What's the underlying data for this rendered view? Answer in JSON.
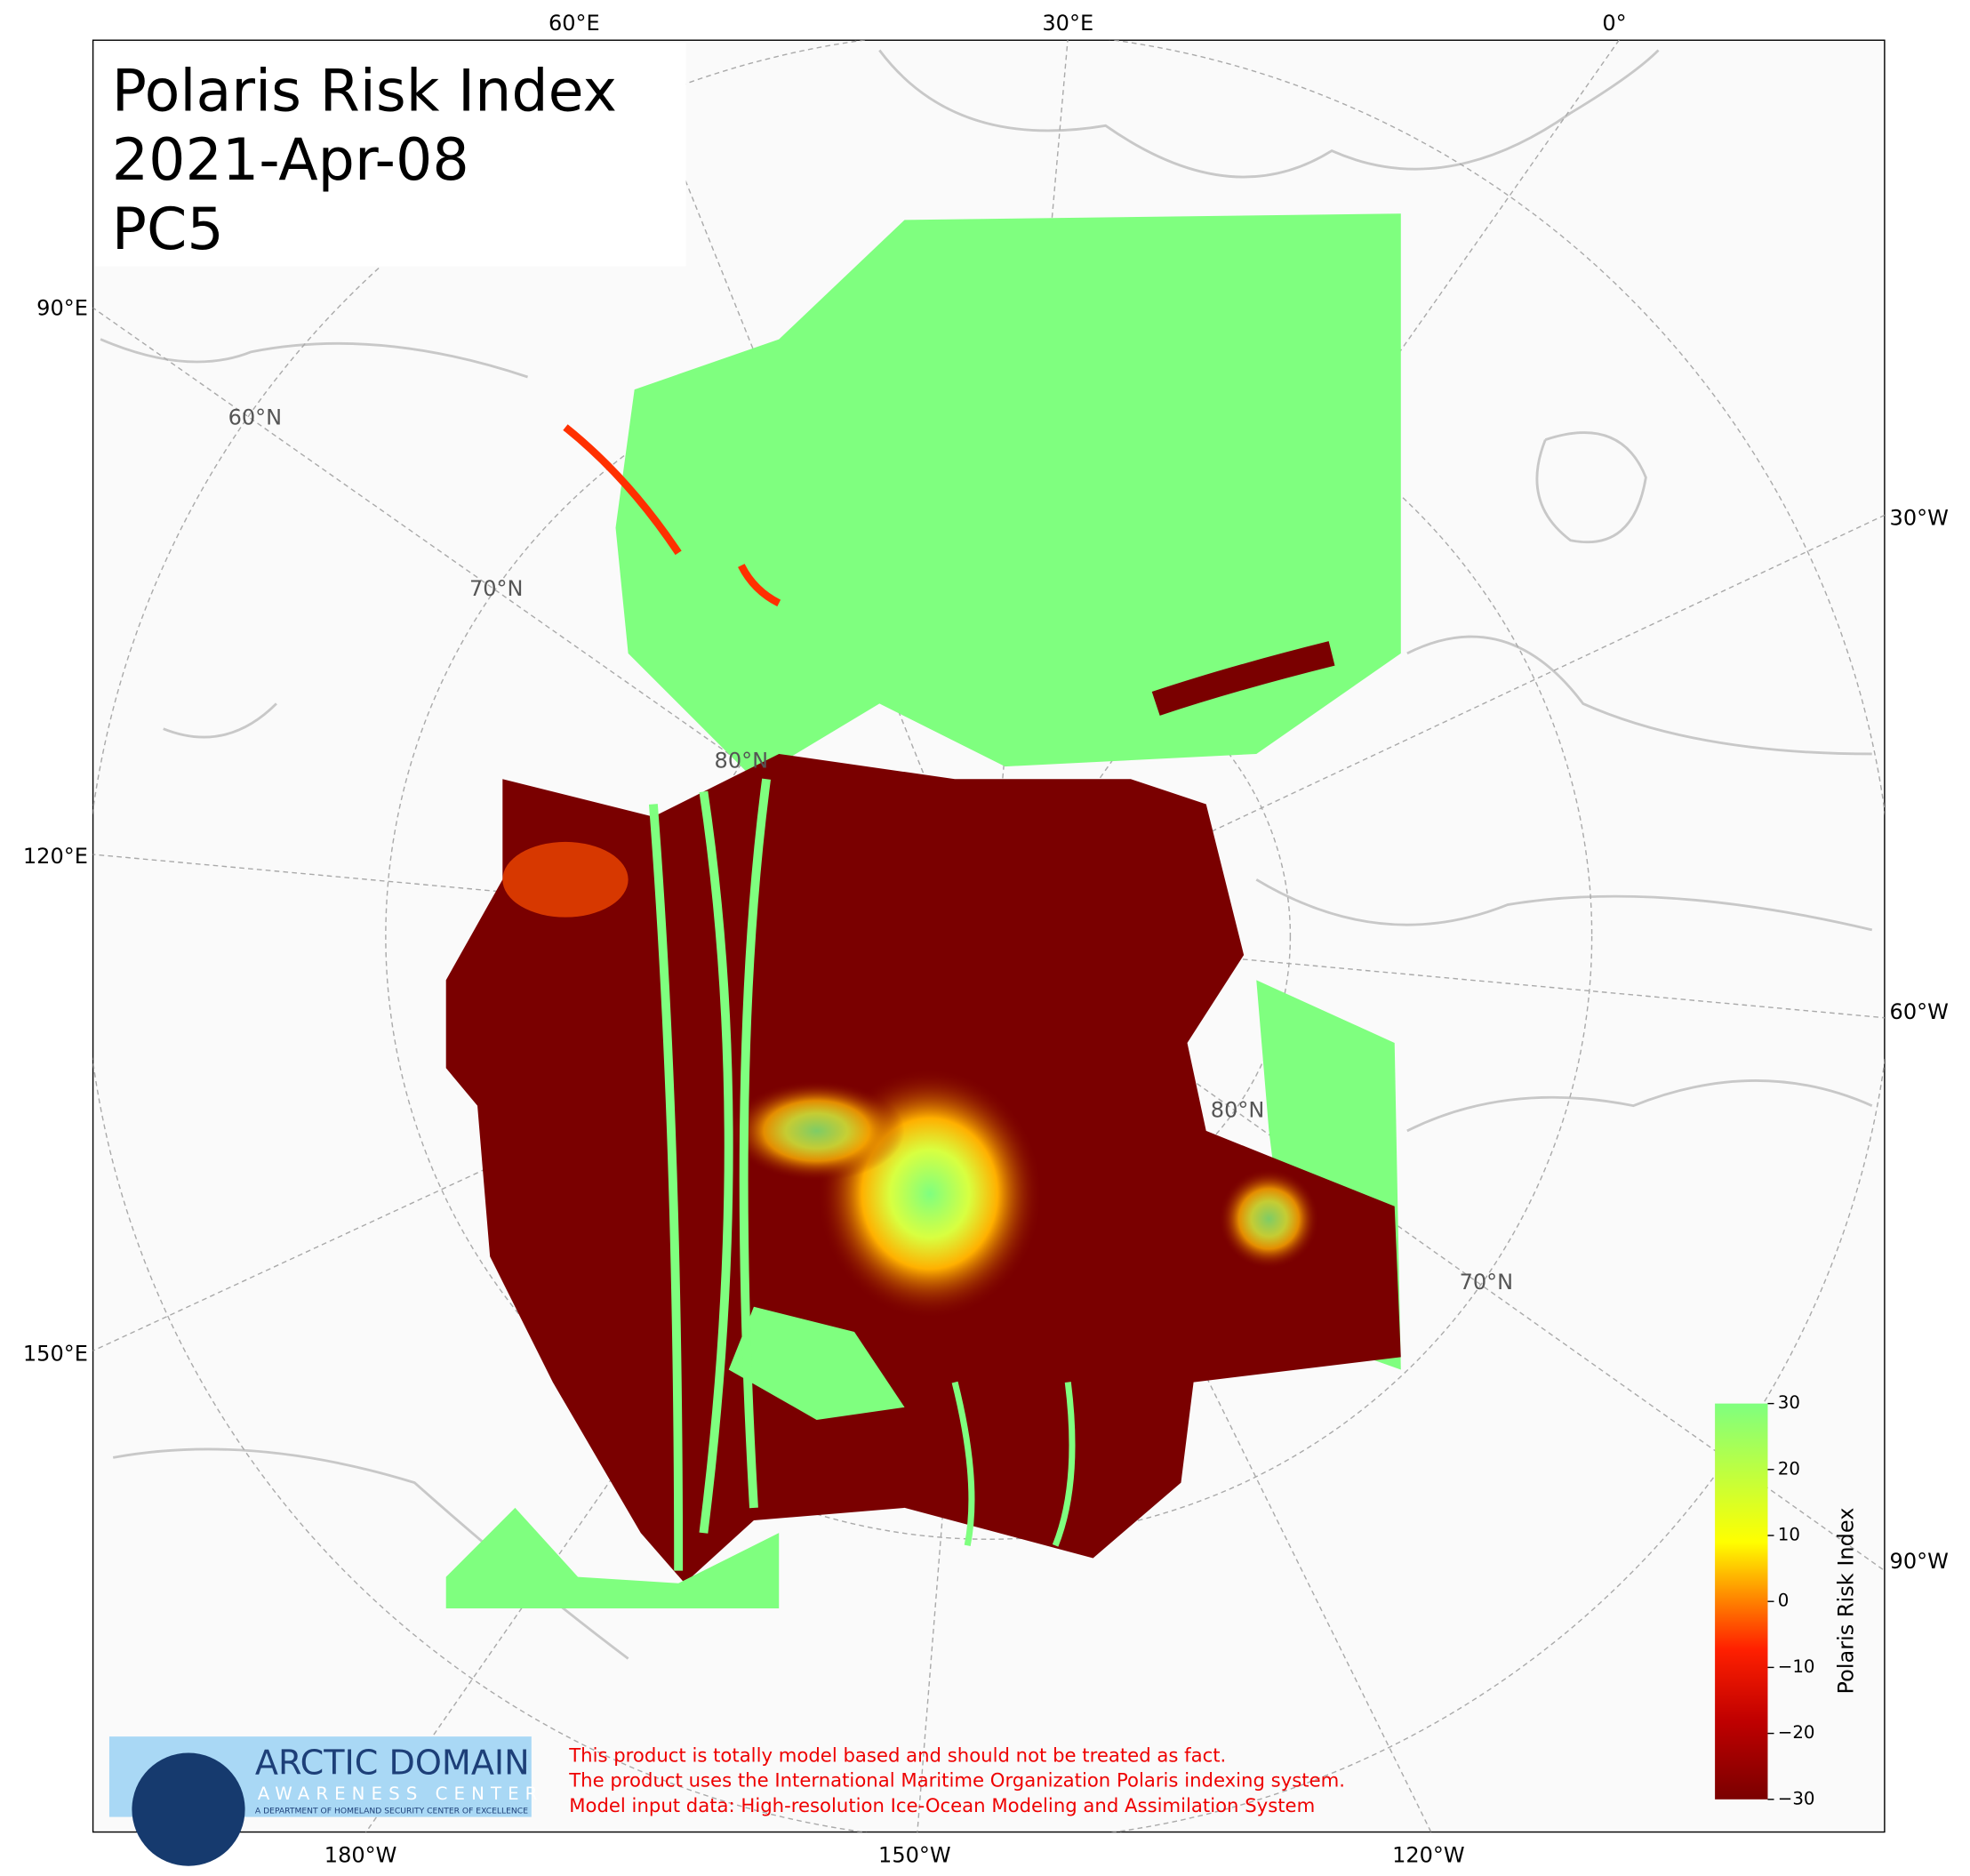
{
  "title": [
    "Polaris Risk Index",
    "2021-Apr-08",
    "PC5"
  ],
  "longitude_labels": {
    "top": [
      "60°E",
      "30°E",
      "0°"
    ],
    "bottom": [
      "180°W",
      "150°W",
      "120°W"
    ],
    "left": [
      "90°E",
      "120°E",
      "150°E"
    ],
    "right": [
      "30°W",
      "60°W",
      "90°W"
    ]
  },
  "latitude_labels": [
    "60°N",
    "70°N",
    "80°N",
    "80°N",
    "70°N"
  ],
  "colorbar": {
    "label": "Polaris Risk Index",
    "lim": [
      -30,
      30
    ],
    "ticks": [
      {
        "value": -30,
        "label": "−30"
      },
      {
        "value": -20,
        "label": "−20"
      },
      {
        "value": -10,
        "label": "−10"
      },
      0,
      10,
      20,
      30
    ]
  },
  "logo": {
    "name": "ARCTIC DOMAIN",
    "subname": "AWARENESS CENTER",
    "tagline": "A DEPARTMENT OF HOMELAND SECURITY CENTER OF EXCELLENCE"
  },
  "disclaimer": [
    "This product is totally model based and should not be treated as fact.",
    "The product uses the International Maritime Organization Polaris indexing system.",
    "Model input data: High-resolution Ice-Ocean Modeling and Assimilation System"
  ]
}
